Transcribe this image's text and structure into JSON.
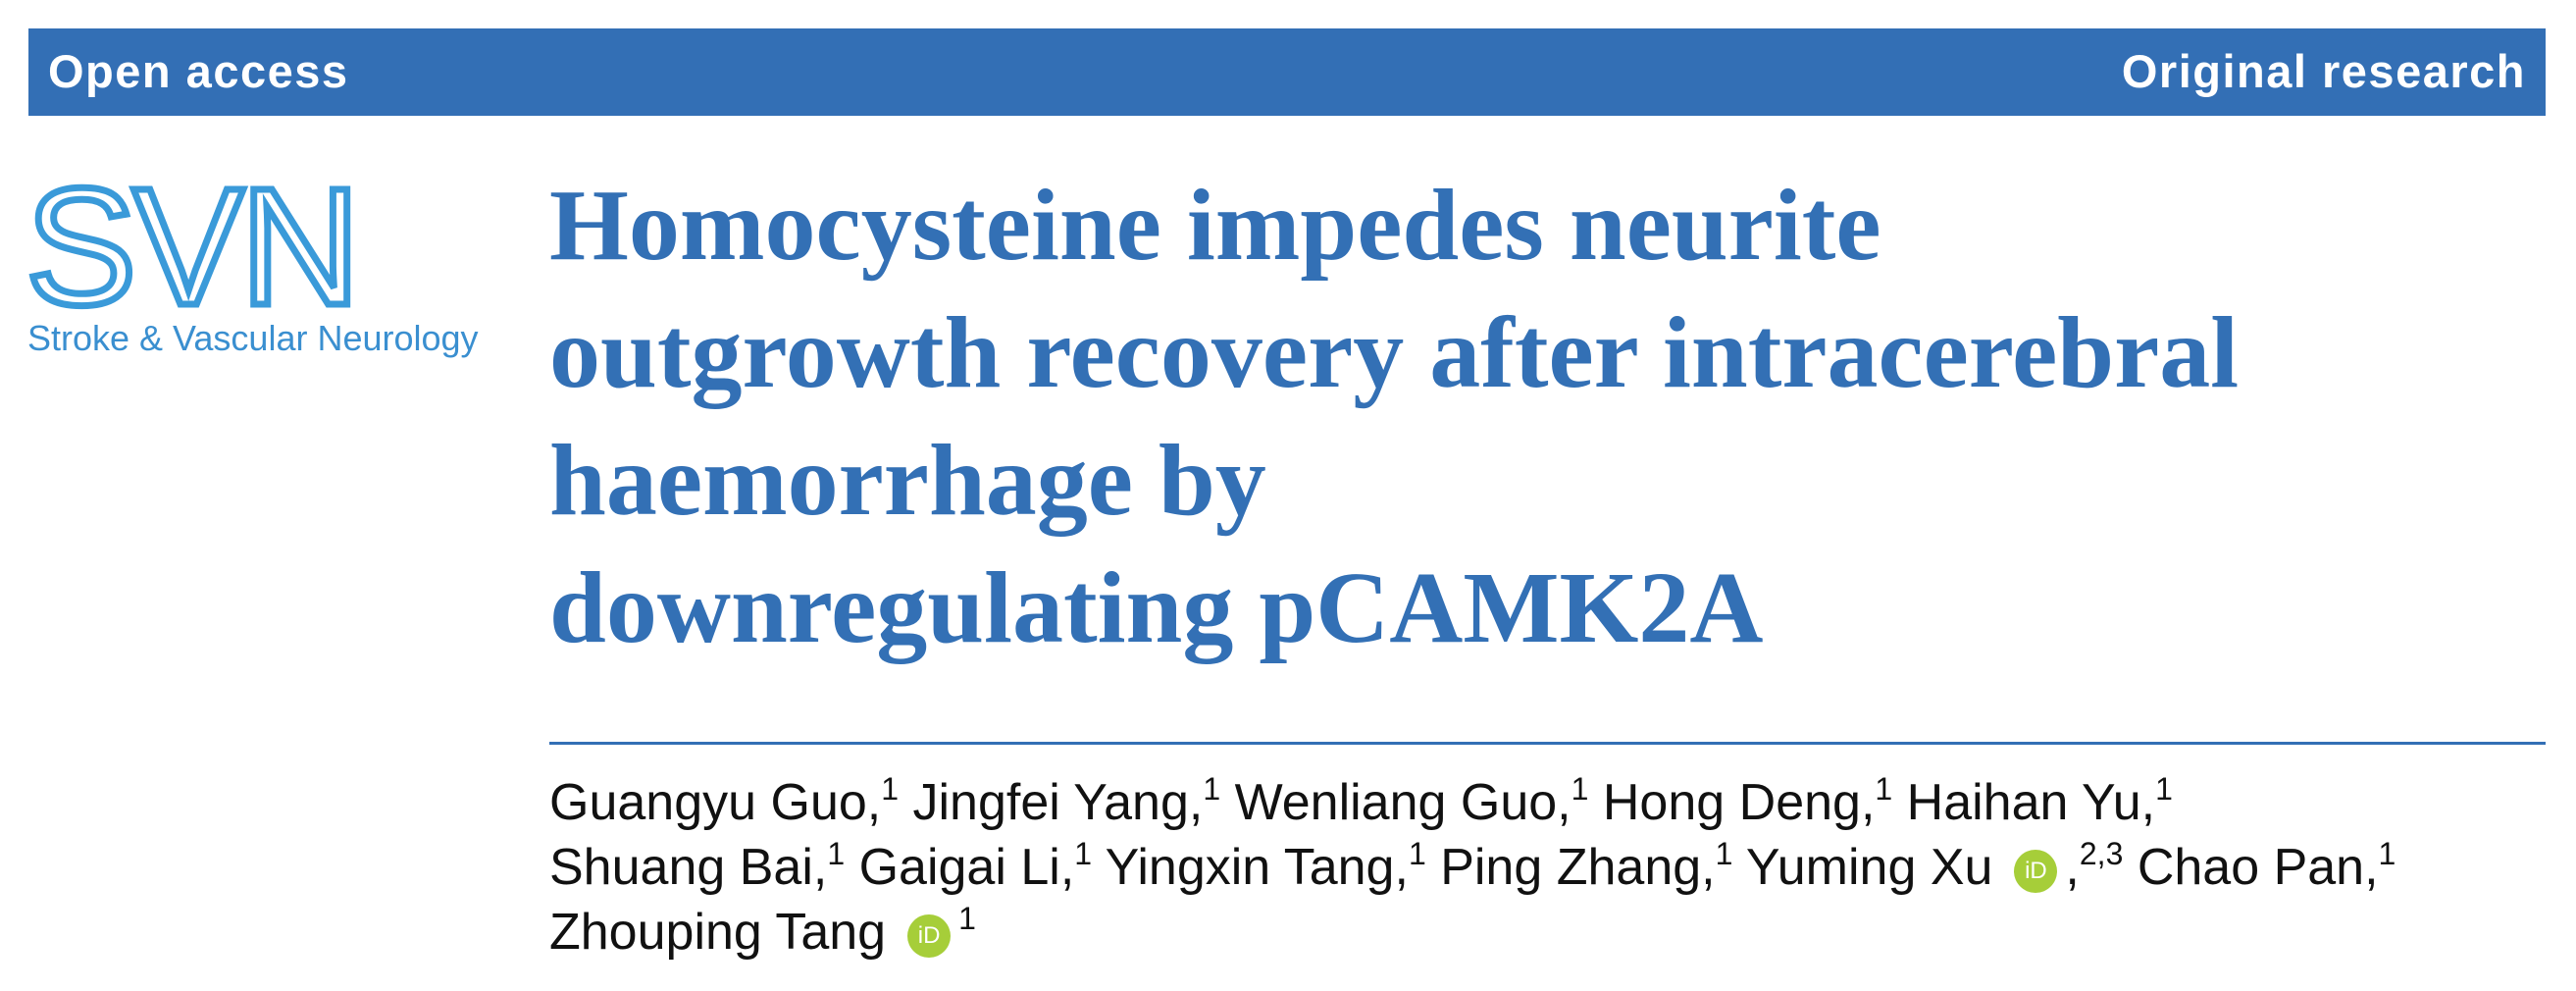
{
  "header": {
    "left": "Open access",
    "right": "Original research"
  },
  "logo": {
    "mark": "SVN",
    "journal": "Stroke & Vascular Neurology"
  },
  "title_lines": [
    "Homocysteine impedes neurite",
    "outgrowth recovery after intracerebral",
    "haemorrhage by",
    "downregulating pCAMK2A"
  ],
  "authors": [
    {
      "name": "Guangyu Guo,",
      "sup": "1"
    },
    {
      "name": "Jingfei Yang,",
      "sup": "1"
    },
    {
      "name": "Wenliang Guo,",
      "sup": "1"
    },
    {
      "name": "Hong Deng,",
      "sup": "1"
    },
    {
      "name": "Haihan Yu,",
      "sup": "1"
    },
    {
      "name": "Shuang Bai,",
      "sup": "1"
    },
    {
      "name": "Gaigai Li,",
      "sup": "1"
    },
    {
      "name": "Yingxin Tang,",
      "sup": "1"
    },
    {
      "name": "Ping Zhang,",
      "sup": "1"
    },
    {
      "name": "Yuming Xu",
      "icon": "iD",
      "suffix": ",",
      "sup": "2,3"
    },
    {
      "name": "Chao Pan,",
      "sup": "1"
    },
    {
      "name": "Zhouping Tang",
      "icon": "iD",
      "sup": "1"
    }
  ]
}
